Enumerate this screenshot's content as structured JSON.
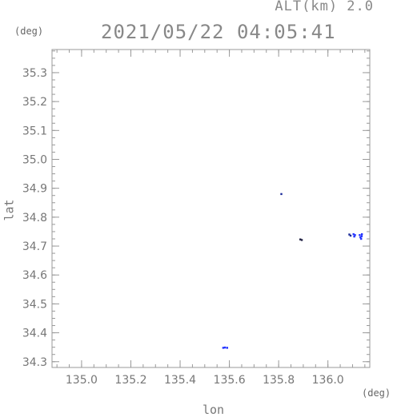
{
  "header": {
    "alt_label": "ALT(km) 2.0",
    "timestamp": "2021/05/22 04:05:41"
  },
  "chart_data": {
    "type": "scatter",
    "title": "2021/05/22 04:05:41",
    "xlabel": "lon",
    "ylabel": "lat",
    "x_unit": "(deg)",
    "y_unit": "(deg)",
    "xlim": [
      134.88,
      136.17
    ],
    "ylim": [
      34.28,
      35.38
    ],
    "xticks": [
      135.0,
      135.2,
      135.4,
      135.6,
      135.8,
      136.0
    ],
    "xtick_labels": [
      "135.0",
      "135.2",
      "135.4",
      "135.6",
      "135.8",
      "136.0"
    ],
    "yticks": [
      34.3,
      34.4,
      34.5,
      34.6,
      34.7,
      34.8,
      34.9,
      35.0,
      35.1,
      35.2,
      35.3
    ],
    "ytick_labels": [
      "34.3",
      "34.4",
      "34.5",
      "34.6",
      "34.7",
      "34.8",
      "34.9",
      "35.0",
      "35.1",
      "35.2",
      "35.3"
    ],
    "minor_x_step": 0.05,
    "minor_y_step": 0.025,
    "grid": false,
    "points": [
      {
        "x": 135.575,
        "y": 34.348,
        "color": "#2233ff"
      },
      {
        "x": 135.582,
        "y": 34.349,
        "color": "#2233ff"
      },
      {
        "x": 135.591,
        "y": 34.348,
        "color": "#2233ff"
      },
      {
        "x": 135.811,
        "y": 34.88,
        "color": "#1a2a99"
      },
      {
        "x": 135.888,
        "y": 34.723,
        "color": "#222244"
      },
      {
        "x": 135.894,
        "y": 34.721,
        "color": "#222244"
      },
      {
        "x": 136.087,
        "y": 34.74,
        "color": "#1a2a99"
      },
      {
        "x": 136.092,
        "y": 34.736,
        "color": "#1a2a99"
      },
      {
        "x": 136.104,
        "y": 34.741,
        "color": "#2233ff"
      },
      {
        "x": 136.107,
        "y": 34.733,
        "color": "#2233ff"
      },
      {
        "x": 136.11,
        "y": 34.738,
        "color": "#2233ff"
      },
      {
        "x": 136.129,
        "y": 34.738,
        "color": "#2233ff"
      },
      {
        "x": 136.132,
        "y": 34.73,
        "color": "#2233ff"
      },
      {
        "x": 136.135,
        "y": 34.725,
        "color": "#2233ff"
      },
      {
        "x": 136.137,
        "y": 34.734,
        "color": "#2233ff"
      },
      {
        "x": 136.138,
        "y": 34.741,
        "color": "#2233ff"
      }
    ]
  }
}
